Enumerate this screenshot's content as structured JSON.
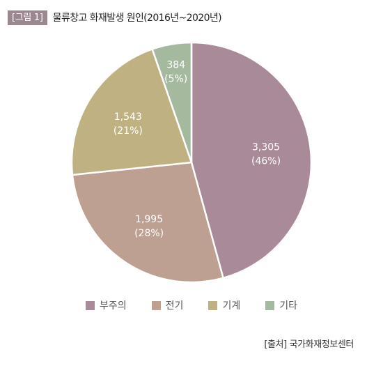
{
  "header": {
    "figure_tag": "[그림 1]",
    "title": "물류창고 화재발생 원인(2016년~2020년)"
  },
  "source": "[출처] 국가화재정보센터",
  "chart_data": {
    "type": "pie",
    "title": "물류창고 화재발생 원인(2016년~2020년)",
    "categories": [
      "부주의",
      "전기",
      "기계",
      "기타"
    ],
    "values": [
      3305,
      1995,
      1543,
      384
    ],
    "value_labels": [
      "3,305",
      "1,995",
      "1,543",
      "384"
    ],
    "percent_labels": [
      "(46%)",
      "(28%)",
      "(21%)",
      "(5%)"
    ],
    "colors": [
      "#a98a98",
      "#bea092",
      "#c0b183",
      "#a5b99f"
    ],
    "legend_position": "bottom",
    "start_angle": "12 o'clock, clockwise"
  }
}
